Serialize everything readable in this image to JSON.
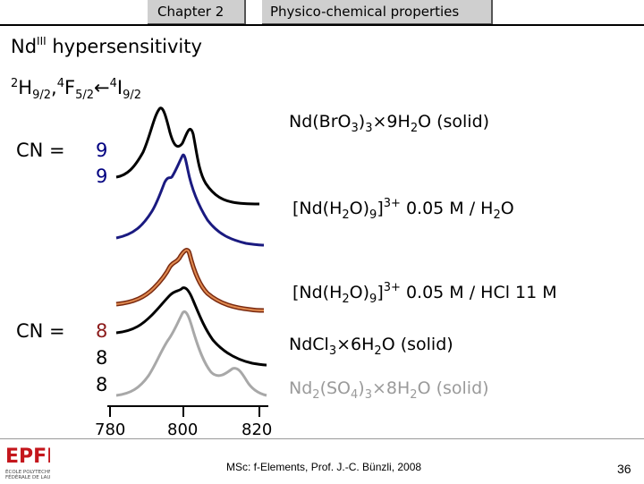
{
  "header": {
    "chapter": "Chapter 2",
    "section": "Physico-chemical properties"
  },
  "title": {
    "prefix": "Nd",
    "superscript": "III",
    "suffix": " hypersensitivity"
  },
  "transition": {
    "sup1": "2",
    "term1": "H",
    "sub1": "9/2",
    "sep": ",",
    "sup2": "4",
    "term2": "F",
    "sub2": "5/2",
    "arrow": "←",
    "sup3": "4",
    "term3": "I",
    "sub3": "9/2"
  },
  "cn_groups": [
    {
      "label": "CN =",
      "values": [
        "9",
        "9"
      ]
    },
    {
      "label": "CN =",
      "values": [
        "8",
        "8",
        "8"
      ]
    }
  ],
  "colors": {
    "black": "#000000",
    "navy": "#1a1a80",
    "orange": "#c0501e",
    "gray": "#a8a8a8",
    "cn9_text": "#000080",
    "cn8_text": "#8b1a1a"
  },
  "x_axis": {
    "ticks": [
      "780",
      "800",
      "820"
    ]
  },
  "spectra_labels": [
    {
      "name": "Nd(BrO3)3·9H2O (solid)",
      "parts": [
        "Nd(Br",
        "O",
        "3",
        ")",
        "3",
        "×",
        "9H",
        "2",
        "O (solid)"
      ]
    },
    {
      "name": "[Nd(H2O)9]3+ 0.05 M / H2O",
      "parts": [
        "[Nd(H",
        "2",
        "O)",
        "9",
        "]",
        "3+",
        " 0.05 M / H",
        "2",
        "O"
      ]
    },
    {
      "name": "[Nd(H2O)9]3+ 0.05 M / HCl 11 M",
      "parts": [
        "[Nd(H",
        "2",
        "O)",
        "9",
        "]",
        "3+",
        " 0.05 M / HCl 11 M"
      ]
    },
    {
      "name": "NdCl3·6H2O (solid)",
      "parts": [
        "NdCl",
        "3",
        "×",
        "6H",
        "2",
        "O (solid)"
      ]
    },
    {
      "name": "Nd2(SO4)3·8H2O (solid)",
      "parts": [
        "Nd",
        "2",
        "(SO",
        "4",
        ")",
        "3",
        "×",
        "8H",
        "2",
        "O (solid)"
      ]
    }
  ],
  "footer": {
    "logo_text": "EPFL",
    "logo_line1": "ÉCOLE POLYTECHNIQUE",
    "logo_line2": "FÉDÉRALE DE LAUSANNE",
    "credit": "MSc: f-Elements,  Prof. J.-C. Bünzli, 2008",
    "page": "36"
  }
}
